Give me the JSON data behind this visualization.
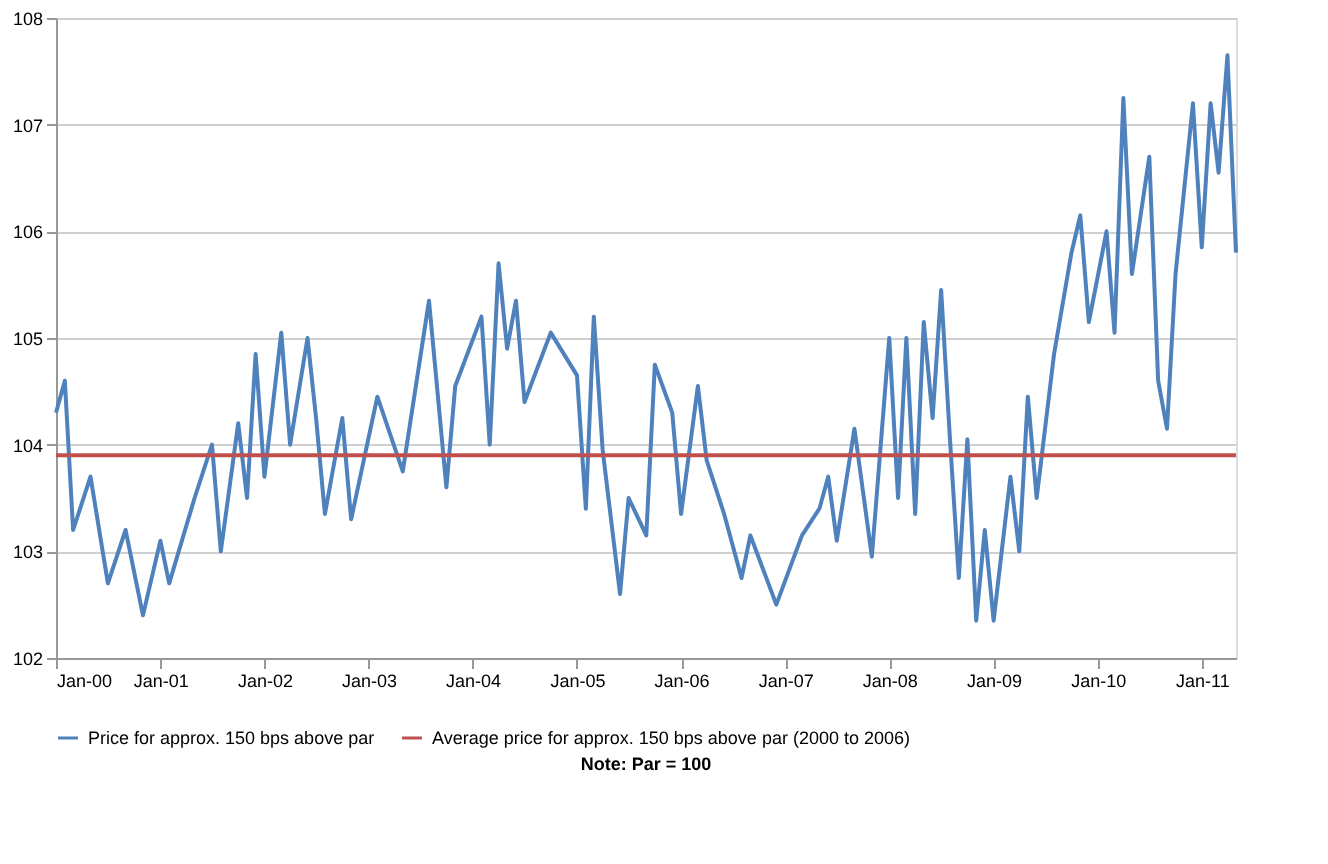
{
  "chart_data": {
    "type": "line",
    "x": [
      "2000-01",
      "2000-02",
      "2000-03",
      "2000-05",
      "2000-07",
      "2000-09",
      "2000-11",
      "2001-01",
      "2001-02",
      "2001-05",
      "2001-07",
      "2001-08",
      "2001-10",
      "2001-11",
      "2001-12",
      "2002-01",
      "2002-03",
      "2002-04",
      "2002-06",
      "2002-07",
      "2002-08",
      "2002-10",
      "2002-11",
      "2003-02",
      "2003-05",
      "2003-08",
      "2003-10",
      "2003-11",
      "2004-02",
      "2004-03",
      "2004-04",
      "2004-05",
      "2004-06",
      "2004-07",
      "2004-10",
      "2005-01",
      "2005-02",
      "2005-03",
      "2005-04",
      "2005-06",
      "2005-07",
      "2005-09",
      "2005-10",
      "2005-12",
      "2006-01",
      "2006-03",
      "2006-04",
      "2006-06",
      "2006-08",
      "2006-09",
      "2006-12",
      "2007-03",
      "2007-05",
      "2007-06",
      "2007-07",
      "2007-09",
      "2007-11",
      "2008-01",
      "2008-02",
      "2008-03",
      "2008-04",
      "2008-05",
      "2008-06",
      "2008-07",
      "2008-08",
      "2008-09",
      "2008-10",
      "2008-11",
      "2008-12",
      "2009-01",
      "2009-03",
      "2009-04",
      "2009-05",
      "2009-06",
      "2009-08",
      "2009-10",
      "2009-11",
      "2009-12",
      "2010-02",
      "2010-03",
      "2010-04",
      "2010-05",
      "2010-07",
      "2010-08",
      "2010-09",
      "2010-10",
      "2010-12",
      "2011-01",
      "2011-02",
      "2011-03",
      "2011-04",
      "2011-05"
    ],
    "series": [
      {
        "name": "Price for approx. 150 bps above par",
        "color": "#4f81bd",
        "values": [
          104.3,
          104.6,
          103.2,
          103.7,
          102.7,
          103.2,
          102.4,
          103.1,
          102.7,
          103.5,
          104.0,
          103.0,
          104.2,
          103.5,
          104.85,
          103.7,
          105.05,
          104.0,
          105.0,
          104.25,
          103.35,
          104.25,
          103.3,
          104.45,
          103.75,
          105.35,
          103.6,
          104.55,
          105.2,
          104.0,
          105.7,
          104.9,
          105.35,
          104.4,
          105.05,
          104.65,
          103.4,
          105.2,
          103.95,
          102.6,
          103.5,
          103.15,
          104.75,
          104.3,
          103.35,
          104.55,
          103.85,
          103.35,
          102.75,
          103.15,
          102.5,
          103.15,
          103.4,
          103.7,
          103.1,
          104.15,
          102.95,
          105.0,
          103.5,
          105.0,
          103.35,
          105.15,
          104.25,
          105.45,
          104.05,
          102.75,
          104.05,
          102.35,
          103.2,
          102.35,
          103.7,
          103.0,
          104.45,
          103.5,
          104.85,
          105.8,
          106.15,
          105.15,
          106.0,
          105.05,
          107.25,
          105.6,
          106.7,
          104.6,
          104.15,
          105.6,
          107.2,
          105.85,
          107.2,
          106.55,
          107.65,
          105.8
        ]
      },
      {
        "name": "Average price for approx. 150 bps above par (2000 to 2006)",
        "color": "#c0504d",
        "x": [
          "2000-01",
          "2011-05"
        ],
        "values": [
          103.9,
          103.9
        ]
      }
    ],
    "xlim": [
      "2000-01",
      "2011-05"
    ],
    "xticks": [
      {
        "value": "2000-01",
        "label": "Jan-00"
      },
      {
        "value": "2001-01",
        "label": "Jan-01"
      },
      {
        "value": "2002-01",
        "label": "Jan-02"
      },
      {
        "value": "2003-01",
        "label": "Jan-03"
      },
      {
        "value": "2004-01",
        "label": "Jan-04"
      },
      {
        "value": "2005-01",
        "label": "Jan-05"
      },
      {
        "value": "2006-01",
        "label": "Jan-06"
      },
      {
        "value": "2007-01",
        "label": "Jan-07"
      },
      {
        "value": "2008-01",
        "label": "Jan-08"
      },
      {
        "value": "2009-01",
        "label": "Jan-09"
      },
      {
        "value": "2010-01",
        "label": "Jan-10"
      },
      {
        "value": "2011-01",
        "label": "Jan-11"
      }
    ],
    "ylim": [
      102,
      108
    ],
    "yticks": [
      102,
      103,
      104,
      105,
      106,
      107,
      108
    ],
    "grid": "y",
    "legend": "bottom",
    "marker": "none",
    "line_style": "solid",
    "annotations": [
      "Note: Par = 100"
    ]
  }
}
